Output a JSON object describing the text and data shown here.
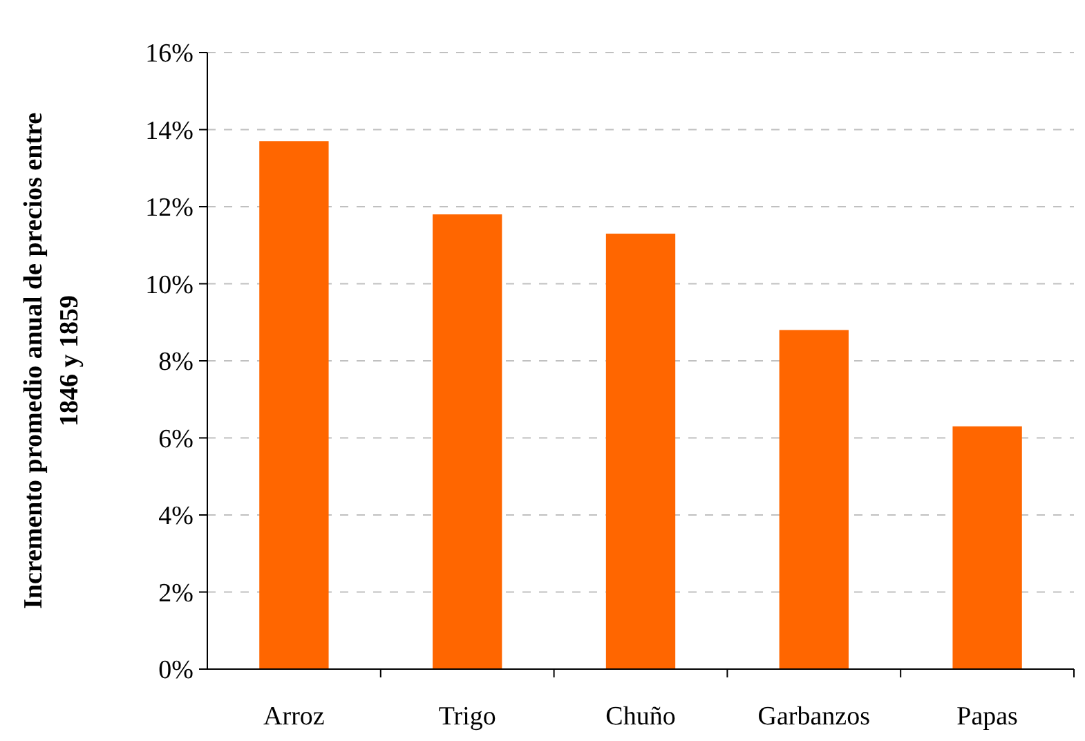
{
  "chart_data": {
    "type": "bar",
    "ylabel": "Incremento promedio anual de precios entre 1846 y 1859",
    "categories": [
      "Arroz",
      "Trigo",
      "Chuño",
      "Garbanzos",
      "Papas"
    ],
    "values": [
      13.7,
      11.8,
      11.3,
      8.8,
      6.3
    ],
    "color": "#ff6600",
    "ylim": [
      0,
      16
    ],
    "yticks": [
      {
        "value": 0,
        "label": "0%"
      },
      {
        "value": 2,
        "label": "2%"
      },
      {
        "value": 4,
        "label": "4%"
      },
      {
        "value": 6,
        "label": "6%"
      },
      {
        "value": 8,
        "label": "8%"
      },
      {
        "value": 10,
        "label": "10%"
      },
      {
        "value": 12,
        "label": "12%"
      },
      {
        "value": 14,
        "label": "14%"
      },
      {
        "value": 16,
        "label": "16%"
      }
    ],
    "grid": "y"
  }
}
